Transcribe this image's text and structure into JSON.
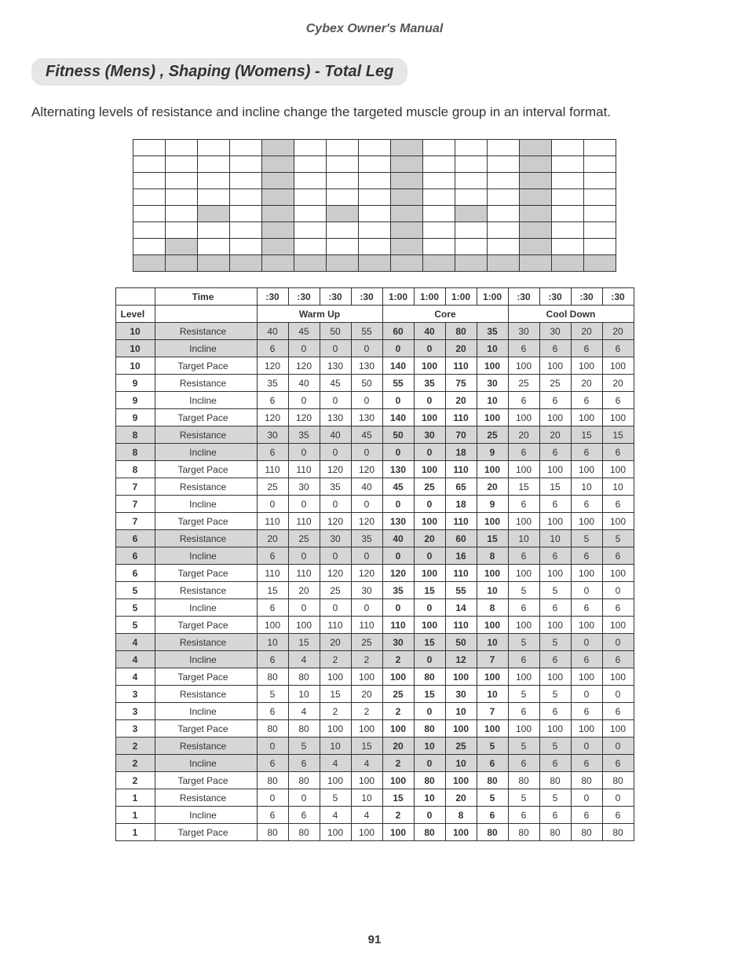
{
  "header": "Cybex Owner's Manual",
  "section_title": "Fitness (Mens) , Shaping (Womens) - Total Leg",
  "description": "Alternating levels of resistance and incline change the targeted muscle group in an interval format.",
  "page_number": "91",
  "mini_table": {
    "rows": 8,
    "cols": 15,
    "shaded_cells": [
      [
        0,
        4
      ],
      [
        0,
        8
      ],
      [
        0,
        12
      ],
      [
        1,
        4
      ],
      [
        1,
        8
      ],
      [
        1,
        12
      ],
      [
        2,
        4
      ],
      [
        2,
        8
      ],
      [
        2,
        12
      ],
      [
        3,
        4
      ],
      [
        3,
        8
      ],
      [
        3,
        12
      ],
      [
        4,
        2
      ],
      [
        4,
        4
      ],
      [
        4,
        6
      ],
      [
        4,
        8
      ],
      [
        4,
        10
      ],
      [
        4,
        12
      ],
      [
        5,
        4
      ],
      [
        5,
        8
      ],
      [
        5,
        12
      ],
      [
        6,
        1
      ],
      [
        6,
        4
      ],
      [
        6,
        8
      ],
      [
        6,
        12
      ],
      [
        7,
        0
      ],
      [
        7,
        1
      ],
      [
        7,
        2
      ],
      [
        7,
        3
      ],
      [
        7,
        4
      ],
      [
        7,
        5
      ],
      [
        7,
        6
      ],
      [
        7,
        7
      ],
      [
        7,
        8
      ],
      [
        7,
        9
      ],
      [
        7,
        10
      ],
      [
        7,
        11
      ],
      [
        7,
        12
      ],
      [
        7,
        13
      ],
      [
        7,
        14
      ]
    ]
  },
  "time_labels": [
    ":30",
    ":30",
    ":30",
    ":30",
    "1:00",
    "1:00",
    "1:00",
    "1:00",
    ":30",
    ":30",
    ":30",
    ":30"
  ],
  "section_labels": {
    "level": "Level",
    "time": "Time",
    "warmup": "Warm Up",
    "core": "Core",
    "cooldown": "Cool Down"
  },
  "row_types": {
    "resistance": "Resistance",
    "incline": "Incline",
    "target_pace": "Target Pace"
  },
  "core_cols": [
    4,
    5,
    6,
    7
  ],
  "rows": [
    {
      "level": "10",
      "type": "resistance",
      "vals": [
        40,
        45,
        50,
        55,
        60,
        40,
        80,
        35,
        30,
        30,
        20,
        20
      ],
      "shaded": true
    },
    {
      "level": "10",
      "type": "incline",
      "vals": [
        6,
        0,
        0,
        0,
        0,
        0,
        20,
        10,
        6,
        6,
        6,
        6
      ],
      "shaded": true
    },
    {
      "level": "10",
      "type": "target_pace",
      "vals": [
        120,
        120,
        130,
        130,
        140,
        100,
        110,
        100,
        100,
        100,
        100,
        100
      ],
      "shaded": false
    },
    {
      "level": "9",
      "type": "resistance",
      "vals": [
        35,
        40,
        45,
        50,
        55,
        35,
        75,
        30,
        25,
        25,
        20,
        20
      ],
      "shaded": false
    },
    {
      "level": "9",
      "type": "incline",
      "vals": [
        6,
        0,
        0,
        0,
        0,
        0,
        20,
        10,
        6,
        6,
        6,
        6
      ],
      "shaded": false
    },
    {
      "level": "9",
      "type": "target_pace",
      "vals": [
        120,
        120,
        130,
        130,
        140,
        100,
        110,
        100,
        100,
        100,
        100,
        100
      ],
      "shaded": false
    },
    {
      "level": "8",
      "type": "resistance",
      "vals": [
        30,
        35,
        40,
        45,
        50,
        30,
        70,
        25,
        20,
        20,
        15,
        15
      ],
      "shaded": true
    },
    {
      "level": "8",
      "type": "incline",
      "vals": [
        6,
        0,
        0,
        0,
        0,
        0,
        18,
        9,
        6,
        6,
        6,
        6
      ],
      "shaded": true
    },
    {
      "level": "8",
      "type": "target_pace",
      "vals": [
        110,
        110,
        120,
        120,
        130,
        100,
        110,
        100,
        100,
        100,
        100,
        100
      ],
      "shaded": false
    },
    {
      "level": "7",
      "type": "resistance",
      "vals": [
        25,
        30,
        35,
        40,
        45,
        25,
        65,
        20,
        15,
        15,
        10,
        10
      ],
      "shaded": false
    },
    {
      "level": "7",
      "type": "incline",
      "vals": [
        0,
        0,
        0,
        0,
        0,
        0,
        18,
        9,
        6,
        6,
        6,
        6
      ],
      "shaded": false
    },
    {
      "level": "7",
      "type": "target_pace",
      "vals": [
        110,
        110,
        120,
        120,
        130,
        100,
        110,
        100,
        100,
        100,
        100,
        100
      ],
      "shaded": false
    },
    {
      "level": "6",
      "type": "resistance",
      "vals": [
        20,
        25,
        30,
        35,
        40,
        20,
        60,
        15,
        10,
        10,
        5,
        5
      ],
      "shaded": true
    },
    {
      "level": "6",
      "type": "incline",
      "vals": [
        6,
        0,
        0,
        0,
        0,
        0,
        16,
        8,
        6,
        6,
        6,
        6
      ],
      "shaded": true
    },
    {
      "level": "6",
      "type": "target_pace",
      "vals": [
        110,
        110,
        120,
        120,
        120,
        100,
        110,
        100,
        100,
        100,
        100,
        100
      ],
      "shaded": false
    },
    {
      "level": "5",
      "type": "resistance",
      "vals": [
        15,
        20,
        25,
        30,
        35,
        15,
        55,
        10,
        5,
        5,
        0,
        0
      ],
      "shaded": false
    },
    {
      "level": "5",
      "type": "incline",
      "vals": [
        6,
        0,
        0,
        0,
        0,
        0,
        14,
        8,
        6,
        6,
        6,
        6
      ],
      "shaded": false
    },
    {
      "level": "5",
      "type": "target_pace",
      "vals": [
        100,
        100,
        110,
        110,
        110,
        100,
        110,
        100,
        100,
        100,
        100,
        100
      ],
      "shaded": false
    },
    {
      "level": "4",
      "type": "resistance",
      "vals": [
        10,
        15,
        20,
        25,
        30,
        15,
        50,
        10,
        5,
        5,
        0,
        0
      ],
      "shaded": true
    },
    {
      "level": "4",
      "type": "incline",
      "vals": [
        6,
        4,
        2,
        2,
        2,
        0,
        12,
        7,
        6,
        6,
        6,
        6
      ],
      "shaded": true
    },
    {
      "level": "4",
      "type": "target_pace",
      "vals": [
        80,
        80,
        100,
        100,
        100,
        80,
        100,
        100,
        100,
        100,
        100,
        100
      ],
      "shaded": false
    },
    {
      "level": "3",
      "type": "resistance",
      "vals": [
        5,
        10,
        15,
        20,
        25,
        15,
        30,
        10,
        5,
        5,
        0,
        0
      ],
      "shaded": false
    },
    {
      "level": "3",
      "type": "incline",
      "vals": [
        6,
        4,
        2,
        2,
        2,
        0,
        10,
        7,
        6,
        6,
        6,
        6
      ],
      "shaded": false
    },
    {
      "level": "3",
      "type": "target_pace",
      "vals": [
        80,
        80,
        100,
        100,
        100,
        80,
        100,
        100,
        100,
        100,
        100,
        100
      ],
      "shaded": false
    },
    {
      "level": "2",
      "type": "resistance",
      "vals": [
        0,
        5,
        10,
        15,
        20,
        10,
        25,
        5,
        5,
        5,
        0,
        0
      ],
      "shaded": true
    },
    {
      "level": "2",
      "type": "incline",
      "vals": [
        6,
        6,
        4,
        4,
        2,
        0,
        10,
        6,
        6,
        6,
        6,
        6
      ],
      "shaded": true
    },
    {
      "level": "2",
      "type": "target_pace",
      "vals": [
        80,
        80,
        100,
        100,
        100,
        80,
        100,
        80,
        80,
        80,
        80,
        80
      ],
      "shaded": false
    },
    {
      "level": "1",
      "type": "resistance",
      "vals": [
        0,
        0,
        5,
        10,
        15,
        10,
        20,
        5,
        5,
        5,
        0,
        0
      ],
      "shaded": false
    },
    {
      "level": "1",
      "type": "incline",
      "vals": [
        6,
        6,
        4,
        4,
        2,
        0,
        8,
        6,
        6,
        6,
        6,
        6
      ],
      "shaded": false
    },
    {
      "level": "1",
      "type": "target_pace",
      "vals": [
        80,
        80,
        100,
        100,
        100,
        80,
        100,
        80,
        80,
        80,
        80,
        80
      ],
      "shaded": false
    }
  ],
  "colors": {
    "background": "#ffffff",
    "text": "#333333",
    "muted": "#555555",
    "shade": "#d6d6d6",
    "section_pill": "#e6e6e6",
    "border": "#333333"
  }
}
